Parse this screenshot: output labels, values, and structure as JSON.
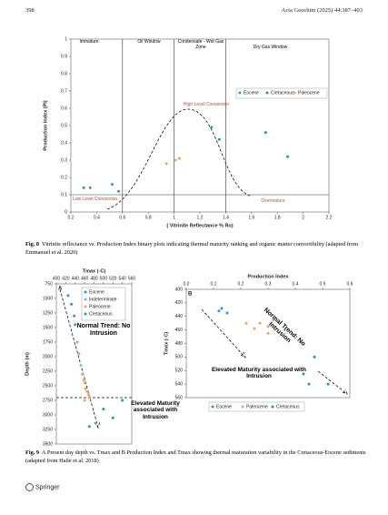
{
  "header": {
    "page_number": "398",
    "journal": "Acta Geochim (2025) 44:387–403"
  },
  "figure_8": {
    "chart_data": {
      "type": "scatter",
      "x_label": "( Vitrinite Reflectance % Ro)",
      "y_label": "Production Index (PI)",
      "xlim": [
        0.2,
        2.2
      ],
      "xticks": [
        0.2,
        0.4,
        0.6,
        0.8,
        1,
        1.2,
        1.4,
        1.6,
        1.8,
        2,
        2.2
      ],
      "ylim": [
        0,
        1
      ],
      "yticks": [
        0,
        0.1,
        0.2,
        0.3,
        0.4,
        0.5,
        0.6,
        0.7,
        0.8,
        0.9,
        1
      ],
      "x_axis_position": "bottom",
      "y_inverted": false,
      "grid": false,
      "legend_position": "upper right",
      "boundaries": {
        "x": [
          0.6,
          1,
          1.4
        ],
        "y": [
          0.1
        ]
      },
      "annotations": [
        "Immature",
        "Oil Window",
        "Condensate - Wet Gas Zone",
        "Dry Gas Window",
        "High Level Conversion",
        "Low Level Conversion",
        "Overmature"
      ],
      "series": [
        {
          "name": "Eocene",
          "color": "#3b8fd3",
          "x": [
            0.3,
            0.35,
            0.52,
            0.57
          ],
          "values": [
            0.14,
            0.14,
            0.16,
            0.12
          ]
        },
        {
          "name": "Cretaceous",
          "color": "#1fa37b",
          "x": [
            1.29,
            1.35,
            1.71,
            1.88
          ],
          "values": [
            0.49,
            0.42,
            0.46,
            0.32
          ]
        },
        {
          "name": "Paleocene",
          "color": "#f0a363",
          "x": [
            0.94,
            1.01,
            1.04
          ],
          "values": [
            0.28,
            0.3,
            0.31
          ]
        }
      ]
    },
    "caption": {
      "label": "Fig. 8",
      "text": "Vitrinite reflectance vs. Production Index binary plots indicating thermal maturity ranking and organic matter convertibility (adapted from Emmanuel et al. 2020)"
    }
  },
  "figure_9": {
    "panels": [
      {
        "type": "scatter",
        "panel_label": "A",
        "x_label": "Tmax (◦C)",
        "y_label": "Depth (m)",
        "xlim": [
          400,
          560
        ],
        "xticks": [
          400,
          420,
          440,
          460,
          480,
          500,
          520,
          540,
          560
        ],
        "ylim": [
          750,
          3500
        ],
        "yticks": [
          750,
          1000,
          1250,
          1500,
          1750,
          2000,
          2250,
          2500,
          2750,
          3000,
          3250,
          3500
        ],
        "x_axis_position": "top",
        "y_inverted": true,
        "grid": false,
        "legend_position": "upper right",
        "annotations": [
          "Normal Trend: No Intrusion",
          "Elevated Maturity associated with Intrusion"
        ],
        "series": [
          {
            "name": "Eocene",
            "color": "#3b8fd3",
            "x": [
              425,
              432,
              438,
              440
            ],
            "values": [
              950,
              1100,
              1300,
              1450
            ]
          },
          {
            "name": "Indeterminate",
            "color": "#86b8dc",
            "x": [
              445,
              448,
              452
            ],
            "values": [
              1750,
              1950,
              2150
            ]
          },
          {
            "name": "Paleocene",
            "color": "#f0a363",
            "x": [
              455,
              458,
              460,
              462,
              465,
              468,
              470,
              460
            ],
            "values": [
              2300,
              2400,
              2450,
              2550,
              2600,
              2650,
              2700,
              2750
            ]
          },
          {
            "name": "Cretaceous",
            "color": "#1fa37b",
            "x": [
              500,
              520,
              540,
              470
            ],
            "values": [
              2900,
              3050,
              2750,
              3200
            ]
          }
        ]
      },
      {
        "type": "scatter",
        "panel_label": "B",
        "x_label": "Production Index",
        "y_label": "Tmax (◦C)",
        "xlim": [
          0,
          0.6
        ],
        "xticks": [
          {
            "value": 0,
            "label": "0.0"
          },
          0.1,
          0.2,
          0.3,
          0.4,
          0.5,
          0.6
        ],
        "ylim": [
          400,
          560
        ],
        "yticks": [
          400,
          420,
          440,
          460,
          480,
          500,
          520,
          540,
          560
        ],
        "x_axis_position": "top",
        "y_inverted": true,
        "grid": false,
        "legend_position": "bottom",
        "annotations": [
          "Normal Trend: No Intrusion",
          "Elevated Maturity associated with Intrusion"
        ],
        "series": [
          {
            "name": "Eocene",
            "color": "#3b8fd3",
            "x": [
              0.12,
              0.13,
              0.15
            ],
            "values": [
              432,
              428,
              435
            ]
          },
          {
            "name": "Paleocene",
            "color": "#f0a363",
            "x": [
              0.22,
              0.25,
              0.27,
              0.3,
              0.32,
              0.36,
              0.3
            ],
            "values": [
              450,
              458,
              450,
              455,
              445,
              460,
              465
            ]
          },
          {
            "name": "Cretaceous",
            "color": "#1fa37b",
            "x": [
              0.47,
              0.43,
              0.45,
              0.52
            ],
            "values": [
              500,
              525,
              540,
              540
            ]
          }
        ]
      }
    ],
    "caption": {
      "label": "Fig. 9",
      "text": "A Present day depth vs. Tmax and B Production Index and Tmax showing thermal maturation variability in the Cretaceous-Eocene sediments (adapted from Haile et al. 2018)"
    }
  },
  "footer": {
    "publisher": "Springer"
  }
}
